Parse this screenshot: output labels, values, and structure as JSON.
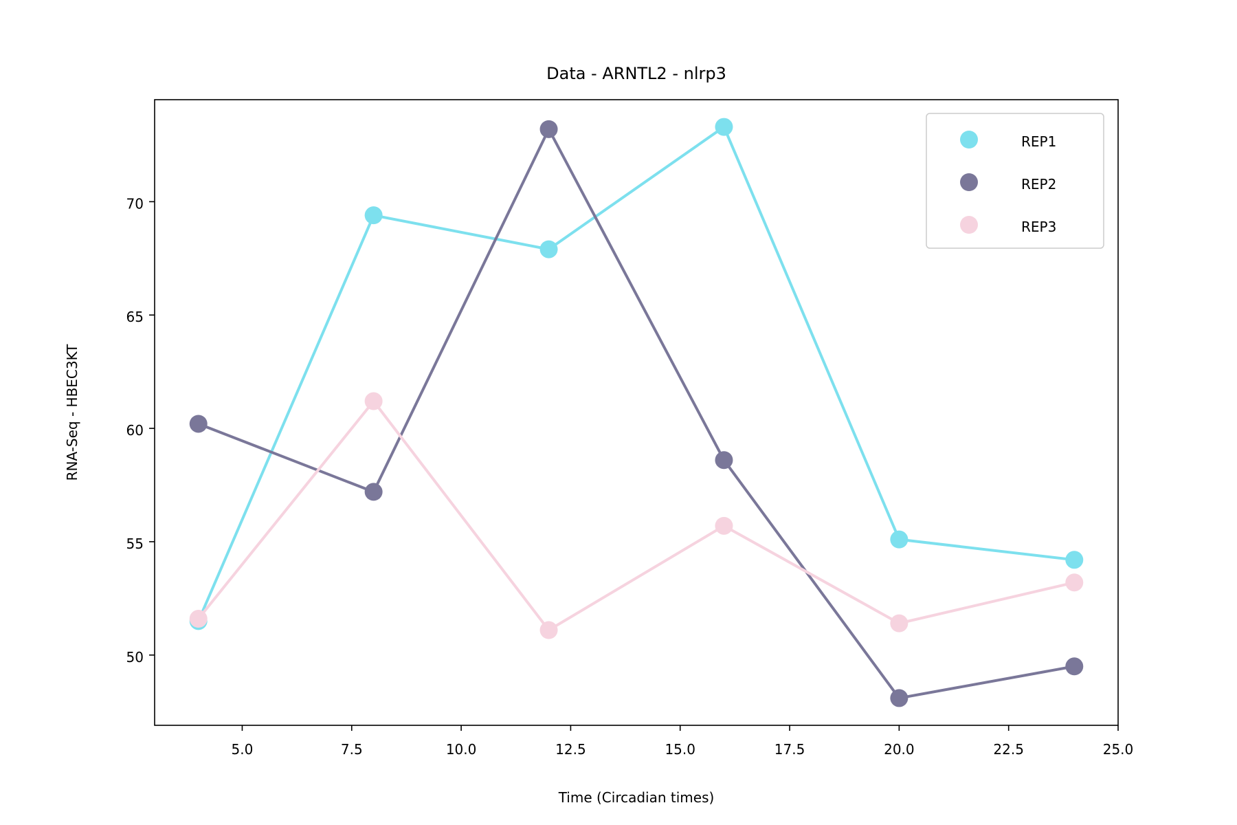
{
  "chart_data": {
    "type": "line",
    "title": "Data - ARNTL2 - nlrp3",
    "xlabel": "Time (Circadian times)",
    "ylabel": "RNA-Seq - HBEC3KT",
    "xlim": [
      3,
      25
    ],
    "ylim": [
      46.9,
      74.5
    ],
    "xticks": [
      5.0,
      7.5,
      10.0,
      12.5,
      15.0,
      17.5,
      20.0,
      22.5,
      25.0
    ],
    "xtick_labels": [
      "5.0",
      "7.5",
      "10.0",
      "12.5",
      "15.0",
      "17.5",
      "20.0",
      "22.5",
      "25.0"
    ],
    "yticks": [
      50,
      55,
      60,
      65,
      70
    ],
    "ytick_labels": [
      "50",
      "55",
      "60",
      "65",
      "70"
    ],
    "grid": false,
    "legend_position": "top-right",
    "x": [
      4,
      8,
      12,
      16,
      20,
      24
    ],
    "series": [
      {
        "name": "REP1",
        "color": "#7de0ee",
        "values": [
          51.5,
          69.4,
          67.9,
          73.3,
          55.1,
          54.2
        ]
      },
      {
        "name": "REP2",
        "color": "#7a7799",
        "values": [
          60.2,
          57.2,
          73.2,
          58.6,
          48.1,
          49.5
        ]
      },
      {
        "name": "REP3",
        "color": "#f6d3df",
        "values": [
          51.6,
          61.2,
          51.1,
          55.7,
          51.4,
          53.2
        ]
      }
    ]
  }
}
